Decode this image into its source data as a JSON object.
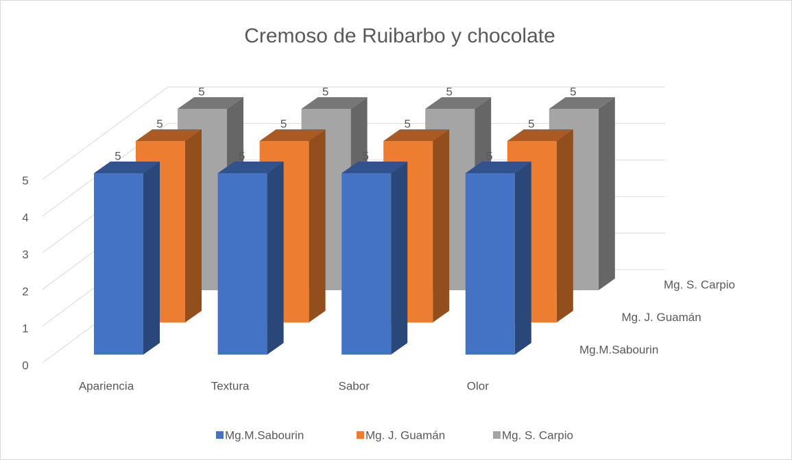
{
  "chart_data": {
    "type": "bar3d",
    "title": "Cremoso de Ruibarbo y chocolate",
    "categories": [
      "Apariencia",
      "Textura",
      "Sabor",
      "Olor"
    ],
    "series": [
      {
        "name": "Mg.M.Sabourin",
        "color": "#4472c4",
        "values": [
          5,
          5,
          5,
          5
        ]
      },
      {
        "name": "Mg. J. Guamán",
        "color": "#ed7d31",
        "values": [
          5,
          5,
          5,
          5
        ]
      },
      {
        "name": "Mg. S. Carpio",
        "color": "#a5a5a5",
        "values": [
          5,
          5,
          5,
          5
        ]
      }
    ],
    "ylim": [
      0,
      5
    ],
    "yticks": [
      0,
      1,
      2,
      3,
      4,
      5
    ],
    "grid": true,
    "legend": "bottom"
  }
}
